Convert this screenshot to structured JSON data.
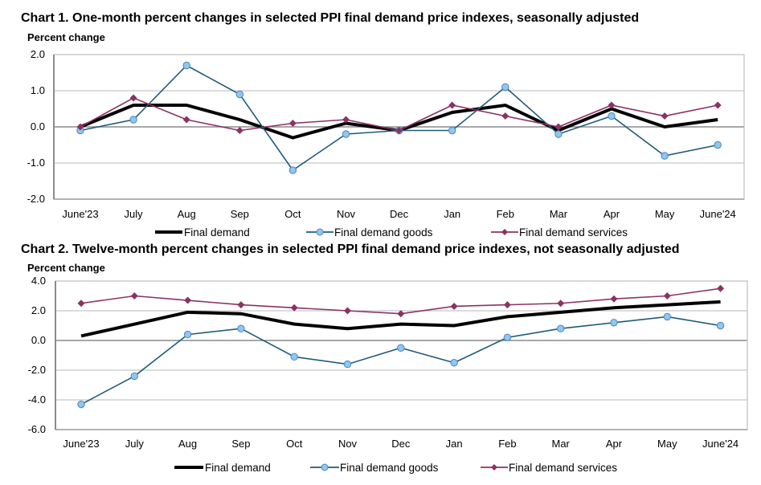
{
  "chart_data": [
    {
      "type": "line",
      "title": "Chart 1. One-month percent changes in selected PPI final demand price indexes, seasonally adjusted",
      "ylabel": "Percent change",
      "xlabel": "",
      "categories": [
        "June'23",
        "July",
        "Aug",
        "Sep",
        "Oct",
        "Nov",
        "Dec",
        "Jan",
        "Feb",
        "Mar",
        "Apr",
        "May",
        "June'24"
      ],
      "ylim": [
        -2.0,
        2.0
      ],
      "yticks": [
        "2.0",
        "1.0",
        "0.0",
        "-1.0",
        "-2.0"
      ],
      "ytick_values": [
        2.0,
        1.0,
        0.0,
        -1.0,
        -2.0
      ],
      "grid": true,
      "legend": "bottom",
      "series": [
        {
          "name": "Final demand",
          "color": "#000000",
          "marker": "none",
          "values": [
            0.0,
            0.6,
            0.6,
            0.2,
            -0.3,
            0.1,
            -0.1,
            0.4,
            0.6,
            -0.1,
            0.5,
            0.0,
            0.2
          ]
        },
        {
          "name": "Final demand goods",
          "color": "#1f5c7a",
          "marker": "circle",
          "marker_fill": "#92c5f2",
          "values": [
            -0.1,
            0.2,
            1.7,
            0.9,
            -1.2,
            -0.2,
            -0.1,
            -0.1,
            1.1,
            -0.2,
            0.3,
            -0.8,
            -0.5
          ]
        },
        {
          "name": "Final demand services",
          "color": "#8b3264",
          "marker": "diamond",
          "values": [
            0.0,
            0.8,
            0.2,
            -0.1,
            0.1,
            0.2,
            -0.1,
            0.6,
            0.3,
            0.0,
            0.6,
            0.3,
            0.6
          ]
        }
      ]
    },
    {
      "type": "line",
      "title": "Chart 2. Twelve-month percent changes in selected PPI final demand price indexes, not seasonally adjusted",
      "ylabel": "Percent change",
      "xlabel": "",
      "categories": [
        "June'23",
        "July",
        "Aug",
        "Sep",
        "Oct",
        "Nov",
        "Dec",
        "Jan",
        "Feb",
        "Mar",
        "Apr",
        "May",
        "June'24"
      ],
      "ylim": [
        -6.0,
        4.0
      ],
      "yticks": [
        "4.0",
        "2.0",
        "0.0",
        "-2.0",
        "-4.0",
        "-6.0"
      ],
      "ytick_values": [
        4.0,
        2.0,
        0.0,
        -2.0,
        -4.0,
        -6.0
      ],
      "grid": true,
      "legend": "bottom",
      "series": [
        {
          "name": "Final demand",
          "color": "#000000",
          "marker": "none",
          "values": [
            0.3,
            1.1,
            1.9,
            1.8,
            1.1,
            0.8,
            1.1,
            1.0,
            1.6,
            1.9,
            2.2,
            2.4,
            2.6
          ]
        },
        {
          "name": "Final demand goods",
          "color": "#1f5c7a",
          "marker": "circle",
          "marker_fill": "#92c5f2",
          "values": [
            -4.3,
            -2.4,
            0.4,
            0.8,
            -1.1,
            -1.6,
            -0.5,
            -1.5,
            0.2,
            0.8,
            1.2,
            1.6,
            1.0
          ]
        },
        {
          "name": "Final demand services",
          "color": "#8b3264",
          "marker": "diamond",
          "values": [
            2.5,
            3.0,
            2.7,
            2.4,
            2.2,
            2.0,
            1.8,
            2.3,
            2.4,
            2.5,
            2.8,
            3.0,
            3.5
          ]
        }
      ]
    }
  ]
}
